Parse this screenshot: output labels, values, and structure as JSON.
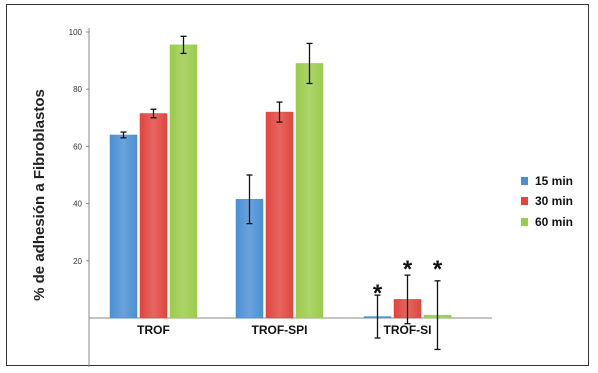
{
  "chart_data": {
    "type": "bar",
    "title": "",
    "xlabel": "",
    "ylabel": "% de adhesión a Fibroblastos",
    "ylim": [
      -20,
      100
    ],
    "yticks": [
      20,
      40,
      60,
      80,
      100
    ],
    "categories": [
      "TROF",
      "TROF-SPI",
      "TROF-SI"
    ],
    "series": [
      {
        "name": "15 min",
        "color": "#4a8fd4",
        "values": [
          64,
          41.5,
          0.5
        ],
        "errors": [
          1,
          8.5,
          7.5
        ]
      },
      {
        "name": "30 min",
        "color": "#e0453e",
        "values": [
          71.5,
          72,
          6.5
        ],
        "errors": [
          1.5,
          3.5,
          8.5
        ]
      },
      {
        "name": "60 min",
        "color": "#9bcb4b",
        "values": [
          95.5,
          89,
          1
        ],
        "errors": [
          3,
          7,
          12
        ]
      }
    ],
    "annotations": [
      {
        "category": "TROF-SI",
        "series": "15 min",
        "text": "*"
      },
      {
        "category": "TROF-SI",
        "series": "30 min",
        "text": "*"
      },
      {
        "category": "TROF-SI",
        "series": "60 min",
        "text": "*"
      }
    ],
    "legend": "right",
    "grid": false
  }
}
